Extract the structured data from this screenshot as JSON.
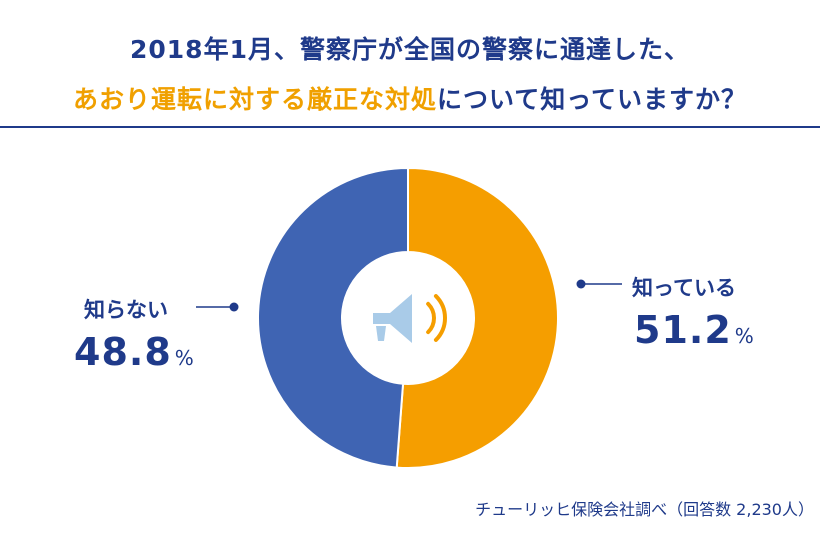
{
  "title": {
    "line1": "2018年1月、警察庁が全国の警察に通達した、",
    "line2_highlight": "あおり運転に対する厳正な対処",
    "line2_rest": "について知っていますか？"
  },
  "source": "チューリッヒ保険会社調べ（回答数 2,230人）",
  "colors": {
    "knows": "#f59e00",
    "not_knows": "#3f64b3",
    "text": "#1f3a8a",
    "highlight": "#f0a000",
    "icon": "#a9cbe8",
    "icon_waves": "#f59e00"
  },
  "center_icon": "megaphone-icon",
  "chart_data": {
    "type": "pie",
    "title": "2018年1月、警察庁が全国の警察に通達した、あおり運転に対する厳正な対処について知っていますか？",
    "categories": [
      "知っている",
      "知らない"
    ],
    "values": [
      51.2,
      48.8
    ],
    "value_labels": [
      "51.2",
      "48.8"
    ],
    "unit": "%",
    "donut": true
  }
}
